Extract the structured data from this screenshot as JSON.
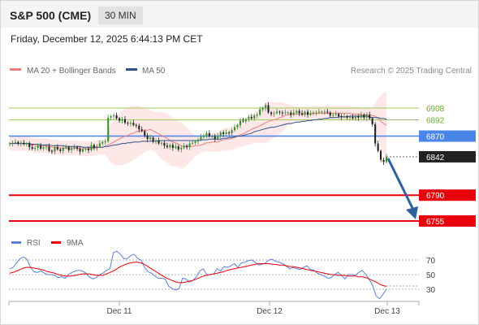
{
  "header": {
    "title": "S&P 500 (CME)",
    "timeframe": "30 MIN"
  },
  "timestamp": "Friday, December 12, 2025 6:44:13 PM CET",
  "legend": {
    "ma20": "MA 20 + Bollinger Bands",
    "ma50": "MA 50",
    "credit": "Research © 2025 Trading Central"
  },
  "rsi_legend": {
    "rsi": "RSI",
    "ma": "9MA"
  },
  "colors": {
    "support": "#e8000b",
    "pivot": "#4a86e8",
    "resistance": "#9acd5a",
    "up_candle": "#3a8f2f",
    "down_candle": "#222222",
    "bollinger": "#fde3e3",
    "ma20": "#e88080",
    "ma50": "#2f4f8f",
    "rsi": "#5b7fd6",
    "rsi_ma": "#e8000b",
    "arrow": "#2f5f9e"
  },
  "chart_data": [
    {
      "type": "line",
      "title": "S&P 500 (CME)",
      "levels": [
        {
          "value": 6908,
          "label": "6908",
          "kind": "resistance"
        },
        {
          "value": 6892,
          "label": "6892",
          "kind": "resistance"
        },
        {
          "value": 6870,
          "label": "6870",
          "kind": "pivot"
        },
        {
          "value": 6842,
          "label": "6842",
          "kind": "last"
        },
        {
          "value": 6790,
          "label": "6790",
          "kind": "support"
        },
        {
          "value": 6755,
          "label": "6755",
          "kind": "support"
        }
      ],
      "x_ticks": [
        "Dec 11",
        "Dec 12",
        "Dec 13"
      ],
      "series": [
        {
          "name": "MA 20 + Bollinger Bands"
        },
        {
          "name": "MA 50"
        }
      ],
      "price_close": [
        6860,
        6861,
        6862,
        6860,
        6861,
        6859,
        6860,
        6855,
        6853,
        6854,
        6857,
        6853,
        6855,
        6856,
        6850,
        6849,
        6855,
        6852,
        6850,
        6854,
        6855,
        6851,
        6853,
        6855,
        6853,
        6849,
        6852,
        6853,
        6851,
        6858,
        6854,
        6856,
        6860,
        6862,
        6863,
        6895,
        6897,
        6898,
        6894,
        6891,
        6893,
        6888,
        6887,
        6888,
        6885,
        6884,
        6879,
        6877,
        6871,
        6866,
        6868,
        6863,
        6864,
        6860,
        6861,
        6857,
        6855,
        6858,
        6854,
        6856,
        6852,
        6854,
        6857,
        6855,
        6860,
        6861,
        6863,
        6865,
        6869,
        6871,
        6874,
        6870,
        6870,
        6866,
        6870,
        6875,
        6873,
        6875,
        6874,
        6878,
        6882,
        6885,
        6891,
        6890,
        6893,
        6896,
        6894,
        6898,
        6899,
        6906,
        6908,
        6912,
        6902,
        6900,
        6901,
        6903,
        6902,
        6901,
        6902,
        6902,
        6899,
        6902,
        6904,
        6901,
        6899,
        6903,
        6899,
        6901,
        6902,
        6902,
        6903,
        6903,
        6903,
        6902,
        6898,
        6899,
        6900,
        6897,
        6896,
        6897,
        6895,
        6896,
        6894,
        6897,
        6895,
        6899,
        6895,
        6899,
        6894,
        6886,
        6860,
        6850,
        6838,
        6835,
        6842
      ],
      "ma20": [
        6860,
        6860,
        6860,
        6860,
        6860,
        6860,
        6860,
        6859,
        6858,
        6857,
        6857,
        6857,
        6857,
        6857,
        6856,
        6855,
        6855,
        6855,
        6854,
        6854,
        6854,
        6854,
        6854,
        6854,
        6854,
        6853,
        6853,
        6853,
        6853,
        6853,
        6854,
        6854,
        6855,
        6855,
        6856,
        6858,
        6860,
        6862,
        6864,
        6866,
        6868,
        6870,
        6871,
        6873,
        6874,
        6876,
        6877,
        6877,
        6878,
        6878,
        6879,
        6877,
        6875,
        6873,
        6871,
        6869,
        6867,
        6864,
        6862,
        6861,
        6859,
        6857,
        6856,
        6856,
        6856,
        6856,
        6857,
        6857,
        6858,
        6859,
        6861,
        6861,
        6862,
        6862,
        6862,
        6864,
        6865,
        6866,
        6866,
        6867,
        6868,
        6870,
        6872,
        6873,
        6875,
        6877,
        6879,
        6881,
        6882,
        6884,
        6886,
        6888,
        6890,
        6891,
        6892,
        6893,
        6895,
        6896,
        6898,
        6899,
        6899,
        6900,
        6900,
        6900,
        6900,
        6900,
        6900,
        6900,
        6901,
        6901,
        6901,
        6901,
        6901,
        6901,
        6901,
        6901,
        6901,
        6901,
        6901,
        6901,
        6901,
        6901,
        6900,
        6900,
        6900,
        6899,
        6899,
        6899,
        6899,
        6898,
        6897,
        6894,
        6890,
        6887,
        6885
      ],
      "ma50": [
        6860,
        6860,
        6860,
        6860,
        6860,
        6860,
        6860,
        6860,
        6859,
        6859,
        6859,
        6858,
        6858,
        6858,
        6858,
        6857,
        6857,
        6857,
        6857,
        6857,
        6856,
        6856,
        6856,
        6856,
        6856,
        6856,
        6855,
        6855,
        6855,
        6855,
        6855,
        6855,
        6855,
        6855,
        6856,
        6856,
        6857,
        6858,
        6858,
        6859,
        6860,
        6860,
        6861,
        6861,
        6862,
        6862,
        6862,
        6863,
        6863,
        6863,
        6863,
        6863,
        6863,
        6864,
        6864,
        6864,
        6864,
        6864,
        6864,
        6864,
        6864,
        6864,
        6864,
        6864,
        6864,
        6864,
        6864,
        6864,
        6865,
        6865,
        6865,
        6866,
        6866,
        6866,
        6866,
        6866,
        6867,
        6867,
        6868,
        6868,
        6869,
        6870,
        6870,
        6871,
        6872,
        6873,
        6874,
        6876,
        6877,
        6878,
        6879,
        6880,
        6881,
        6882,
        6882,
        6883,
        6884,
        6885,
        6886,
        6887,
        6887,
        6888,
        6889,
        6889,
        6890,
        6890,
        6891,
        6891,
        6892,
        6892,
        6893,
        6893,
        6894,
        6894,
        6895,
        6895,
        6895,
        6896,
        6896,
        6896,
        6896,
        6897,
        6897,
        6897,
        6897,
        6897,
        6897,
        6897,
        6896,
        6895,
        6895,
        6895,
        6894,
        6894,
        6893
      ]
    },
    {
      "type": "line",
      "levels": [
        70,
        50,
        30
      ],
      "ylim": [
        10,
        90
      ],
      "series": [
        {
          "name": "RSI",
          "values": [
            58,
            60,
            66,
            72,
            74,
            71,
            60,
            54,
            53,
            55,
            52,
            50,
            50,
            49,
            46,
            47,
            45,
            50,
            53,
            55,
            56,
            55,
            52,
            47,
            44,
            46,
            50,
            52,
            56,
            58,
            80,
            82,
            78,
            72,
            72,
            76,
            78,
            72,
            70,
            60,
            54,
            52,
            48,
            45,
            45,
            44,
            34,
            31,
            29,
            31,
            45,
            44,
            40,
            42,
            47,
            55,
            58,
            50,
            50,
            51,
            58,
            55,
            61,
            60,
            62,
            65,
            60,
            66,
            67,
            69,
            70,
            67,
            63,
            64,
            66,
            70,
            71,
            68,
            67,
            65,
            62,
            58,
            60,
            58,
            57,
            60,
            62,
            57,
            56,
            52,
            50,
            48,
            45,
            46,
            50,
            53,
            49,
            44,
            50,
            50,
            49,
            53,
            56,
            50,
            44,
            35,
            21,
            17,
            23,
            30
          ]
        },
        {
          "name": "9MA",
          "values": [
            52,
            53,
            55,
            57,
            59,
            60,
            60,
            59,
            58,
            57,
            56,
            54,
            53,
            52,
            50,
            49,
            48,
            48,
            48,
            49,
            50,
            51,
            51,
            51,
            50,
            49,
            49,
            49,
            51,
            53,
            55,
            58,
            61,
            63,
            65,
            66,
            67,
            67,
            66,
            64,
            61,
            58,
            55,
            52,
            49,
            46,
            44,
            42,
            40,
            39,
            39,
            40,
            41,
            42,
            44,
            46,
            48,
            49,
            50,
            51,
            52,
            53,
            54,
            56,
            57,
            58,
            59,
            60,
            61,
            62,
            63,
            64,
            65,
            65,
            65,
            65,
            64,
            64,
            63,
            63,
            62,
            61,
            61,
            60,
            59,
            58,
            57,
            56,
            55,
            54,
            53,
            52,
            51,
            50,
            50,
            49,
            49,
            49,
            48,
            48,
            48,
            47,
            47,
            46,
            44,
            42,
            40,
            37,
            35,
            34
          ]
        }
      ]
    }
  ]
}
